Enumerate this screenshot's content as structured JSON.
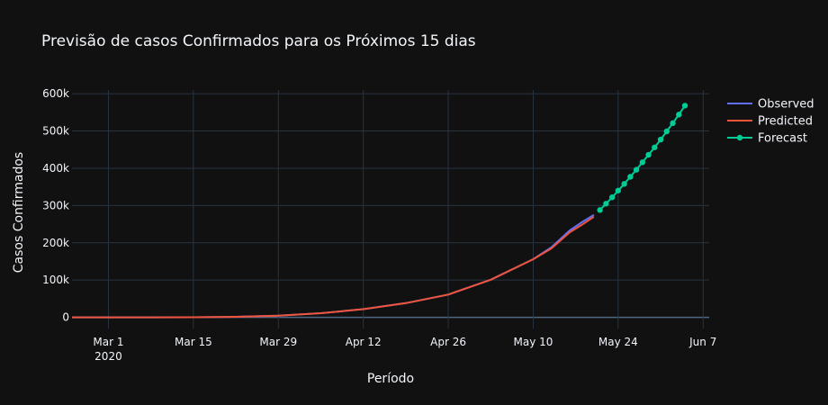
{
  "chart_data": {
    "type": "line",
    "title": "Previsão de casos Confirmados para os Próximos 15 dias",
    "xlabel": "Período",
    "ylabel": "Casos Confirmados",
    "x_range": [
      "2020-02-24",
      "2020-06-08"
    ],
    "ylim": [
      -30000,
      610000
    ],
    "x_ticks": [
      {
        "date": "2020-03-01",
        "label": "Mar 1",
        "sublabel": "2020"
      },
      {
        "date": "2020-03-15",
        "label": "Mar 15"
      },
      {
        "date": "2020-03-29",
        "label": "Mar 29"
      },
      {
        "date": "2020-04-12",
        "label": "Apr 12"
      },
      {
        "date": "2020-04-26",
        "label": "Apr 26"
      },
      {
        "date": "2020-05-10",
        "label": "May 10"
      },
      {
        "date": "2020-05-24",
        "label": "May 24"
      },
      {
        "date": "2020-06-07",
        "label": "Jun 7"
      }
    ],
    "y_ticks": [
      {
        "value": 0,
        "label": "0"
      },
      {
        "value": 100000,
        "label": "100k"
      },
      {
        "value": 200000,
        "label": "200k"
      },
      {
        "value": 300000,
        "label": "300k"
      },
      {
        "value": 400000,
        "label": "400k"
      },
      {
        "value": 500000,
        "label": "500k"
      },
      {
        "value": 600000,
        "label": "600k"
      }
    ],
    "grid": true,
    "legend_position": "top-right",
    "series": [
      {
        "name": "Observed",
        "color": "#636efa",
        "mode": "lines",
        "x": [
          "2020-02-24",
          "2020-03-01",
          "2020-03-08",
          "2020-03-15",
          "2020-03-22",
          "2020-03-29",
          "2020-04-05",
          "2020-04-12",
          "2020-04-19",
          "2020-04-26",
          "2020-05-03",
          "2020-05-10",
          "2020-05-13",
          "2020-05-16",
          "2020-05-18",
          "2020-05-20"
        ],
        "y": [
          0,
          2,
          25,
          200,
          1500,
          4300,
          11000,
          22000,
          38000,
          61000,
          101000,
          156000,
          188000,
          233000,
          255000,
          275000
        ]
      },
      {
        "name": "Predicted",
        "color": "#ef553b",
        "mode": "lines",
        "x": [
          "2020-02-24",
          "2020-03-01",
          "2020-03-08",
          "2020-03-15",
          "2020-03-22",
          "2020-03-29",
          "2020-04-05",
          "2020-04-12",
          "2020-04-19",
          "2020-04-26",
          "2020-05-03",
          "2020-05-10",
          "2020-05-13",
          "2020-05-16",
          "2020-05-18",
          "2020-05-20"
        ],
        "y": [
          0,
          2,
          25,
          200,
          1500,
          4300,
          11000,
          22000,
          38000,
          61000,
          101000,
          156000,
          185000,
          228000,
          248000,
          270000
        ]
      },
      {
        "name": "Forecast",
        "color": "#00cc96",
        "mode": "lines+markers",
        "x": [
          "2020-05-21",
          "2020-05-22",
          "2020-05-23",
          "2020-05-24",
          "2020-05-25",
          "2020-05-26",
          "2020-05-27",
          "2020-05-28",
          "2020-05-29",
          "2020-05-30",
          "2020-05-31",
          "2020-06-01",
          "2020-06-02",
          "2020-06-03",
          "2020-06-04"
        ],
        "y": [
          288000,
          305000,
          322000,
          340000,
          358000,
          377000,
          396000,
          416000,
          436000,
          456000,
          477000,
          499000,
          521000,
          544000,
          568000
        ]
      }
    ]
  }
}
